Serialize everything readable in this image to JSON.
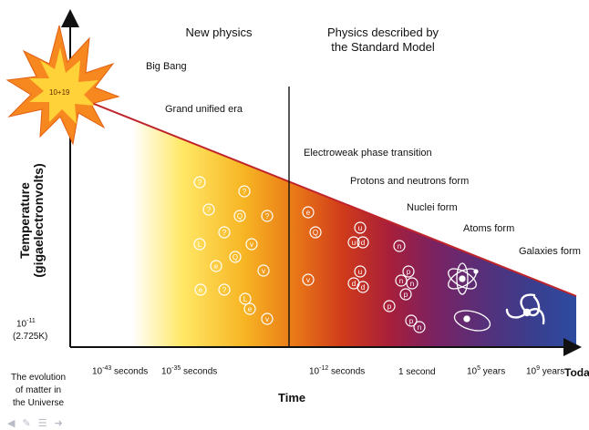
{
  "headers": {
    "new_physics": "New physics",
    "standard_model": "Physics described by the Standard Model"
  },
  "eras": {
    "big_bang": "Big Bang",
    "big_bang_temp": "10+19",
    "grand_unified": "Grand unified era",
    "electroweak": "Electroweak phase transition",
    "protons_neutrons": "Protons and neutrons form",
    "nuclei": "Nuclei form",
    "atoms": "Atoms form",
    "galaxies": "Galaxies form"
  },
  "y_axis": {
    "label_line1": "Temperature",
    "label_line2": "(gigaelectronvolts)",
    "low_value": "10-11",
    "low_kelvin": "(2.725K)"
  },
  "x_axis": {
    "label": "Time",
    "ticks": [
      {
        "base": "10",
        "exp": "-43",
        "unit": " seconds"
      },
      {
        "base": "10",
        "exp": "-35",
        "unit": " seconds"
      },
      {
        "base": "10",
        "exp": "-12",
        "unit": " seconds"
      },
      {
        "base": "1 second",
        "exp": "",
        "unit": ""
      },
      {
        "base": "10",
        "exp": "5",
        "unit": " years"
      },
      {
        "base": "10",
        "exp": "9",
        "unit": " years"
      },
      {
        "base": "Today",
        "exp": "",
        "unit": ""
      }
    ]
  },
  "caption": {
    "line1": "The evolution",
    "line2": "of matter in",
    "line3": "the Universe"
  },
  "particles": {
    "early": [
      "?",
      "?",
      "?",
      "?",
      "Q",
      "?",
      "L",
      "v",
      "e",
      "v",
      "Q",
      "?",
      "L",
      "e",
      "e",
      "v"
    ],
    "late_e": "e",
    "late_Q": "Q",
    "late_v": "v",
    "u": "u",
    "d": "d",
    "n": "n",
    "p": "p"
  },
  "colors": {
    "gradient": [
      "#ffffff",
      "#ffe45a",
      "#f6a21d",
      "#df4a12",
      "#b51d2e",
      "#7b2463",
      "#4b2e7a",
      "#323c8c",
      "#2a4aa0"
    ],
    "diagonal_line": "#c0242b",
    "star_fill": "#f6881f",
    "star_inner": "#ffd23a"
  },
  "nav_icons": [
    "prev-icon",
    "edit-icon",
    "menu-icon",
    "next-icon"
  ]
}
